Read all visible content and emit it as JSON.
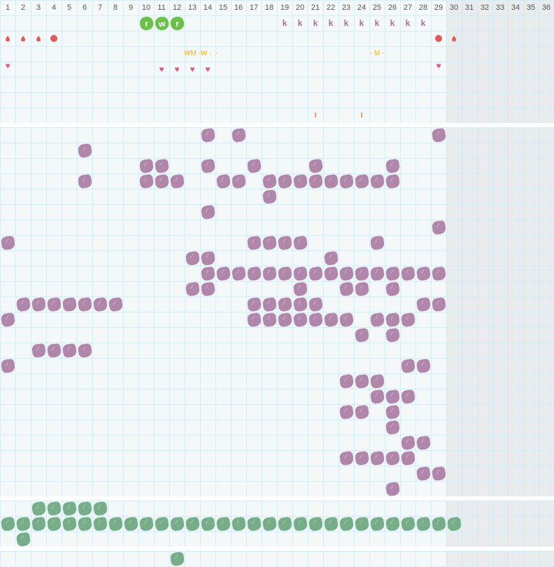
{
  "header": {
    "days": [
      "1",
      "2",
      "3",
      "4",
      "5",
      "6",
      "7",
      "8",
      "9",
      "10",
      "11",
      "12",
      "13",
      "14",
      "15",
      "16",
      "17",
      "18",
      "19",
      "20",
      "21",
      "22",
      "23",
      "24",
      "25",
      "26",
      "27",
      "28",
      "29",
      "30",
      "31",
      "32",
      "33",
      "34",
      "35",
      "36"
    ]
  },
  "colors": {
    "purple": "#b086aa",
    "green": "#78ad8a",
    "lime": "#6cc04a",
    "red": "#e05a5a",
    "heart": "#e05a80",
    "orange_text": "#f4b019",
    "future_shade": "#efefef"
  },
  "top": {
    "letter_blobs": [
      {
        "day": 10,
        "label": "r"
      },
      {
        "day": 11,
        "label": "w"
      },
      {
        "day": 12,
        "label": "r"
      }
    ],
    "k_marks": {
      "label": "k",
      "days": [
        19,
        20,
        21,
        22,
        23,
        24,
        25,
        26,
        27,
        28
      ]
    },
    "drops": [
      1,
      2,
      3,
      30
    ],
    "dots": [
      4,
      29
    ],
    "texts": [
      {
        "day": 13,
        "label": "WM -W -  -"
      },
      {
        "day": 25,
        "label": "- M -"
      }
    ],
    "hearts_high": [
      1,
      29
    ],
    "hearts_low": [
      11,
      12,
      13,
      14
    ],
    "ticks": {
      "label": "I",
      "days": [
        21,
        24
      ]
    }
  },
  "purple_rows": [
    [
      14,
      16,
      29
    ],
    [
      6
    ],
    [
      10,
      11,
      14,
      17,
      21,
      26
    ],
    [
      6,
      10,
      11,
      12,
      15,
      16,
      18,
      19,
      20,
      21,
      22,
      23,
      24,
      25,
      26
    ],
    [
      18
    ],
    [
      14
    ],
    [
      29
    ],
    [
      1,
      17,
      18,
      19,
      20,
      25
    ],
    [
      13,
      14,
      22
    ],
    [
      14,
      15,
      16,
      17,
      18,
      19,
      20,
      21,
      22,
      23,
      24,
      25,
      26,
      27,
      28,
      29
    ],
    [
      13,
      14,
      20,
      23,
      24,
      26
    ],
    [
      2,
      3,
      4,
      5,
      6,
      7,
      8,
      17,
      18,
      19,
      20,
      21,
      28,
      29
    ],
    [
      1,
      17,
      18,
      19,
      20,
      21,
      22,
      23,
      25,
      26,
      27
    ],
    [
      24,
      26
    ],
    [
      3,
      4,
      5,
      6
    ],
    [
      1,
      27,
      28
    ],
    [
      23,
      24,
      25
    ],
    [
      25,
      26,
      27
    ],
    [
      23,
      24,
      26
    ],
    [
      26
    ],
    [
      27,
      28
    ],
    [
      23,
      24,
      25,
      26,
      27
    ],
    [
      28,
      29
    ],
    [
      26
    ]
  ],
  "green_rows": [
    [
      3,
      4,
      5,
      6,
      7
    ],
    [
      1,
      2,
      3,
      4,
      5,
      6,
      7,
      8,
      9,
      10,
      11,
      12,
      13,
      14,
      15,
      16,
      17,
      18,
      19,
      20,
      21,
      22,
      23,
      24,
      25,
      26,
      27,
      28,
      29,
      30
    ],
    [
      2
    ]
  ],
  "last_rows": [
    [
      12
    ]
  ]
}
